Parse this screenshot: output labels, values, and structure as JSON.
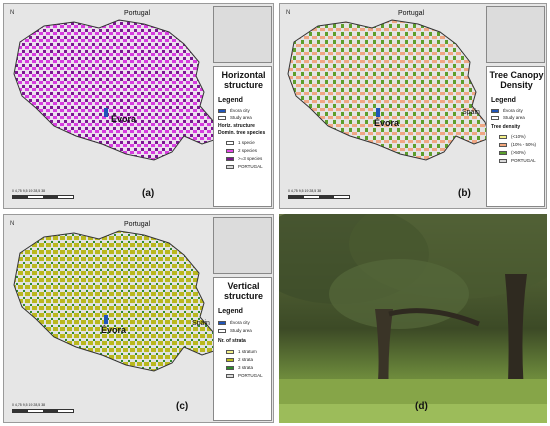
{
  "panel_a": {
    "north": "N",
    "country_top": "Portugal",
    "city": "Évora",
    "legend_title": "Horizontal structure",
    "legend_heading": "Legend",
    "rows": [
      {
        "label": "Évora city",
        "color": "#1f54b8"
      },
      {
        "label": "Study area",
        "color": "#ffffff"
      }
    ],
    "subheading": "Horiz. structure",
    "subheading2": "Domin. tree species",
    "classes": [
      {
        "label": "1 specie",
        "color": "#ffffff"
      },
      {
        "label": "2 species",
        "color": "#e24ae5"
      },
      {
        "label": ">=3 species",
        "color": "#7a158a"
      },
      {
        "label": "PORTUGAL",
        "color": "#d9d9d9"
      }
    ],
    "scale_label": "0  4,75 9,5      19       28,5      38",
    "panel_label": "(a)",
    "fill_primary": "#d73ce0",
    "fill_secondary": "#7b1591"
  },
  "panel_b": {
    "north": "N",
    "country_top": "Portugal",
    "country_side": "Spain",
    "city": "Évora",
    "legend_title": "Tree Canopy Density",
    "legend_heading": "Legend",
    "rows": [
      {
        "label": "Évora city",
        "color": "#1f54b8"
      },
      {
        "label": "Study area",
        "color": "#ffffff"
      }
    ],
    "subheading": "Tree density",
    "classes": [
      {
        "label": "(<10%)",
        "color": "#f4f08a"
      },
      {
        "label": "(10% - 50%)",
        "color": "#f3a77c"
      },
      {
        "label": "(>50%)",
        "color": "#5aa02c"
      },
      {
        "label": "PORTUGAL",
        "color": "#d9d9d9"
      }
    ],
    "scale_label": "0  4,75 9,5      19       28,5      38",
    "panel_label": "(b)",
    "fill_primary": "#f0a683",
    "fill_secondary": "#5e9e2c"
  },
  "panel_c": {
    "north": "N",
    "country_top": "Portugal",
    "country_side": "Spain",
    "city": "Évora",
    "legend_title": "Vertical structure",
    "legend_heading": "Legend",
    "rows": [
      {
        "label": "Évora city",
        "color": "#1f54b8"
      },
      {
        "label": "Study area",
        "color": "#ffffff"
      }
    ],
    "subheading": "Nr. of strata",
    "classes": [
      {
        "label": "1 stratum",
        "color": "#f4f08a"
      },
      {
        "label": "2 strata",
        "color": "#bcbc1e"
      },
      {
        "label": "3 strata",
        "color": "#2d8a2a"
      },
      {
        "label": "PORTUGAL",
        "color": "#d9d9d9"
      }
    ],
    "scale_label": "0  4,75 9,5      19       28,5      38",
    "panel_label": "(c)",
    "fill_primary": "#b9b81e",
    "fill_secondary": "#2f8a2b"
  },
  "panel_d": {
    "panel_label": "(d)"
  }
}
